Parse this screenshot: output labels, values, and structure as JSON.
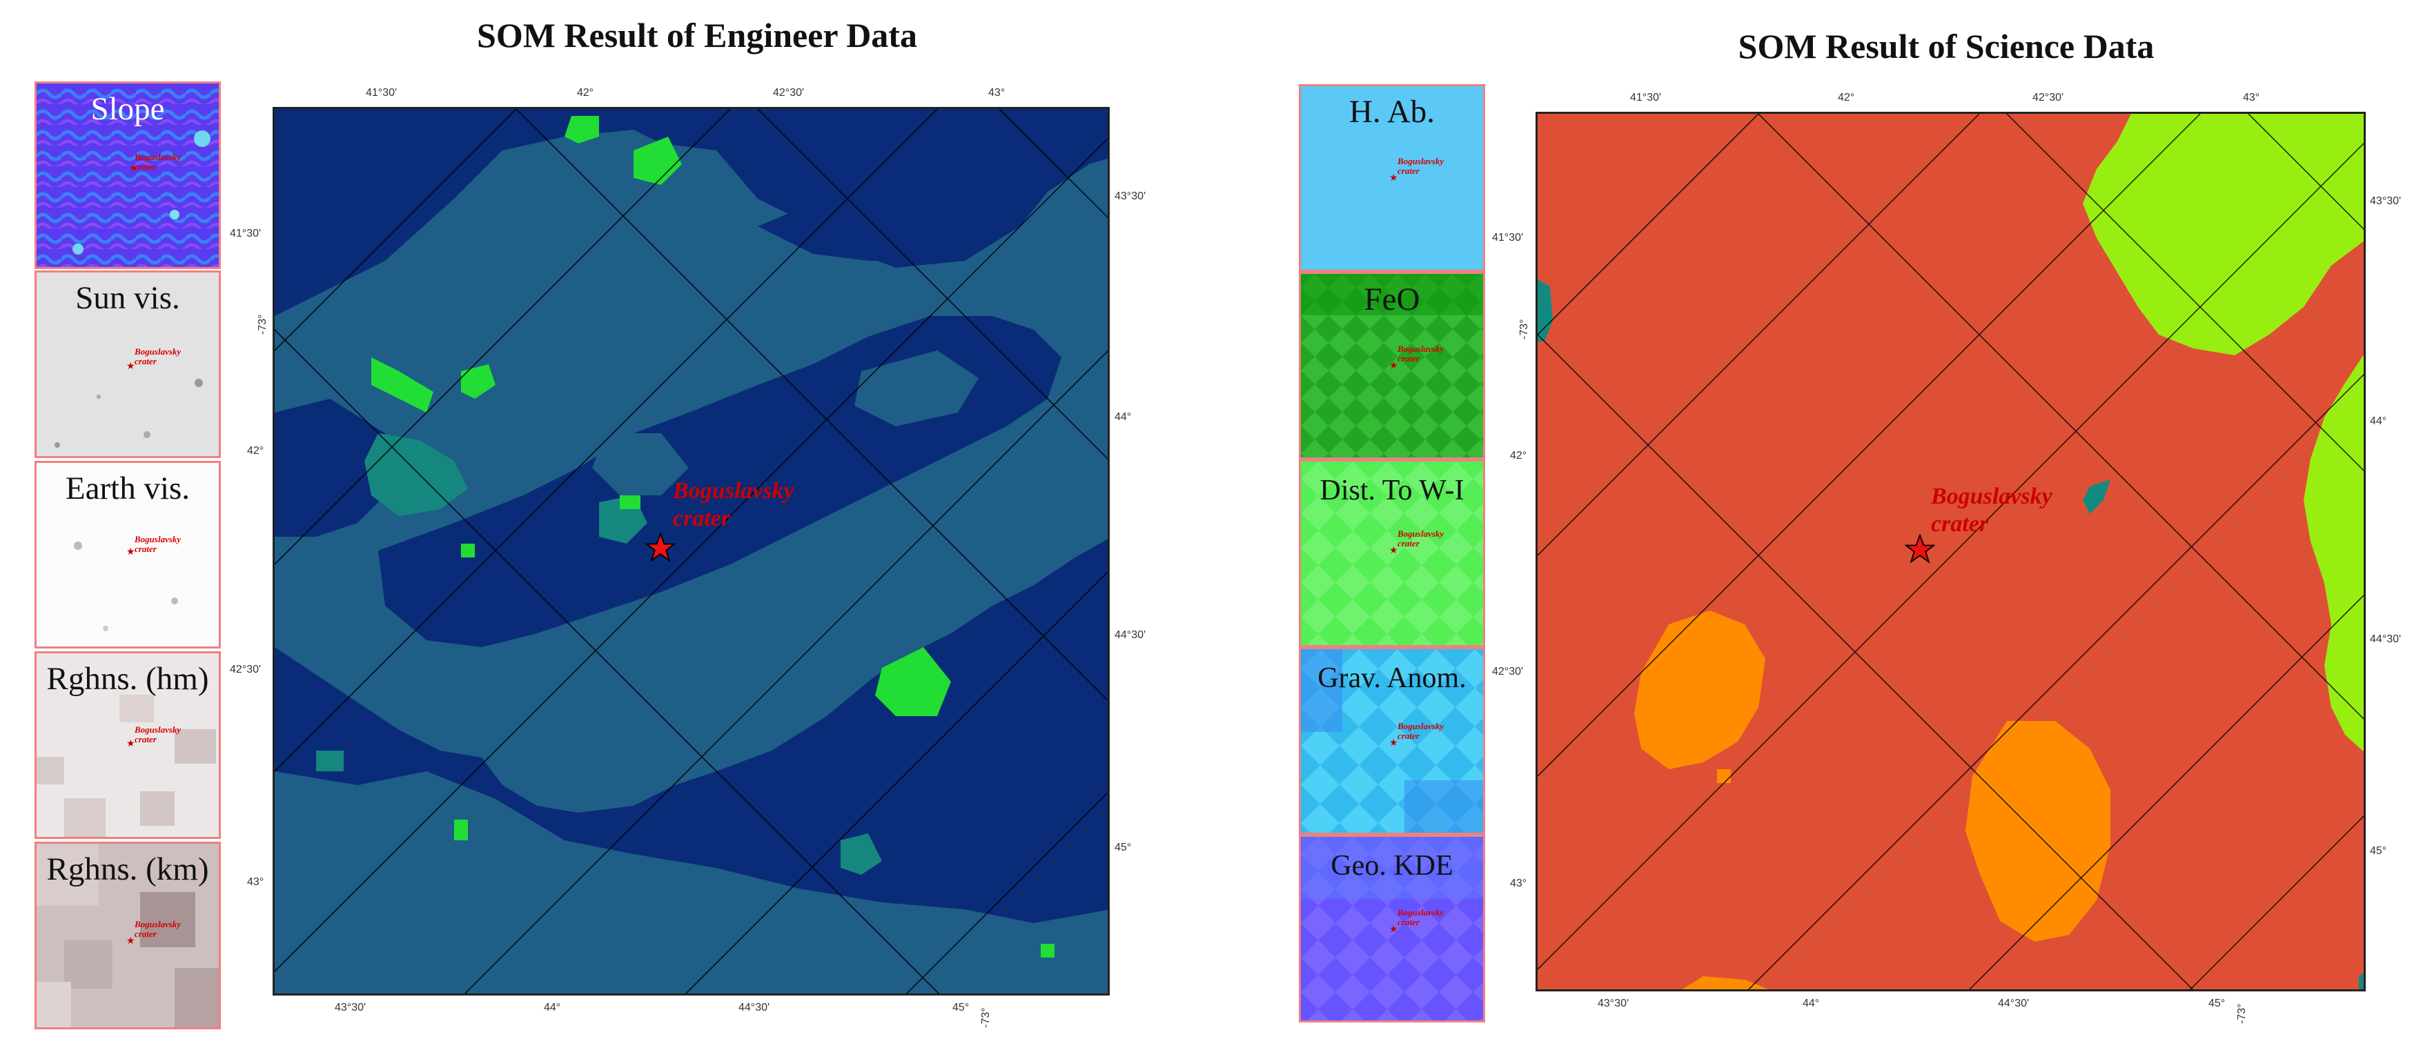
{
  "left": {
    "title": "SOM Result of Engineer Data",
    "thumbnails": [
      {
        "label": "Slope",
        "crater": "Boguslavsky\ncrater",
        "bg": "#5a3cf0"
      },
      {
        "label": "Sun vis.",
        "crater": "Boguslavsky\ncrater",
        "bg": "#e2e2e2"
      },
      {
        "label": "Earth vis.",
        "crater": "Boguslavsky\ncrater",
        "bg": "#fbfbfb"
      },
      {
        "label": "Rghns. (hm)",
        "crater": "Boguslavsky\ncrater",
        "bg": "#ece7e7"
      },
      {
        "label": "Rghns. (km)",
        "crater": "Boguslavsky\ncrater",
        "bg": "#cdbfbf"
      }
    ],
    "map": {
      "crater_label": "Boguslavsky\ncrater",
      "colors": {
        "base": "#0a2b78",
        "mid": "#1f5e86",
        "teal": "#15877f",
        "green": "#22dd33"
      },
      "ticks": {
        "top": [
          "41°30'",
          "42°",
          "42°30'",
          "43°"
        ],
        "left": [
          "41°30'",
          "-73°",
          "42°",
          "42°30'",
          "43°"
        ],
        "right": [
          "43°30'",
          "44°",
          "44°30'",
          "45°"
        ],
        "bottom": [
          "43°30'",
          "44°",
          "44°30'",
          "45°",
          "-73°"
        ]
      }
    }
  },
  "right": {
    "title": "SOM Result of Science Data",
    "thumbnails": [
      {
        "label": "H. Ab.",
        "crater": "Boguslavsky\ncrater",
        "bg": "#5cc8f5"
      },
      {
        "label": "FeO",
        "crater": "Boguslavsky\ncrater",
        "bg": "#22a522"
      },
      {
        "label": "Dist. To W-I",
        "crater": "Boguslavsky\ncrater",
        "bg": "#55ee55"
      },
      {
        "label": "Grav. Anom.",
        "crater": "Boguslavsky\ncrater",
        "bg": "#33bbee"
      },
      {
        "label": "Geo. KDE",
        "crater": "Boguslavsky\ncrater",
        "bg": "#6655ff"
      }
    ],
    "map": {
      "crater_label": "Boguslavsky\ncrater",
      "colors": {
        "base": "#dd5036",
        "lime": "#99ee11",
        "orange": "#ff8c00",
        "teal": "#138a80"
      },
      "ticks": {
        "top": [
          "41°30'",
          "42°",
          "42°30'",
          "43°"
        ],
        "left": [
          "41°30'",
          "-73°",
          "42°",
          "42°30'",
          "43°"
        ],
        "right": [
          "43°30'",
          "44°",
          "44°30'",
          "45°"
        ],
        "bottom": [
          "43°30'",
          "44°",
          "44°30'",
          "45°",
          "-73°"
        ]
      }
    }
  }
}
